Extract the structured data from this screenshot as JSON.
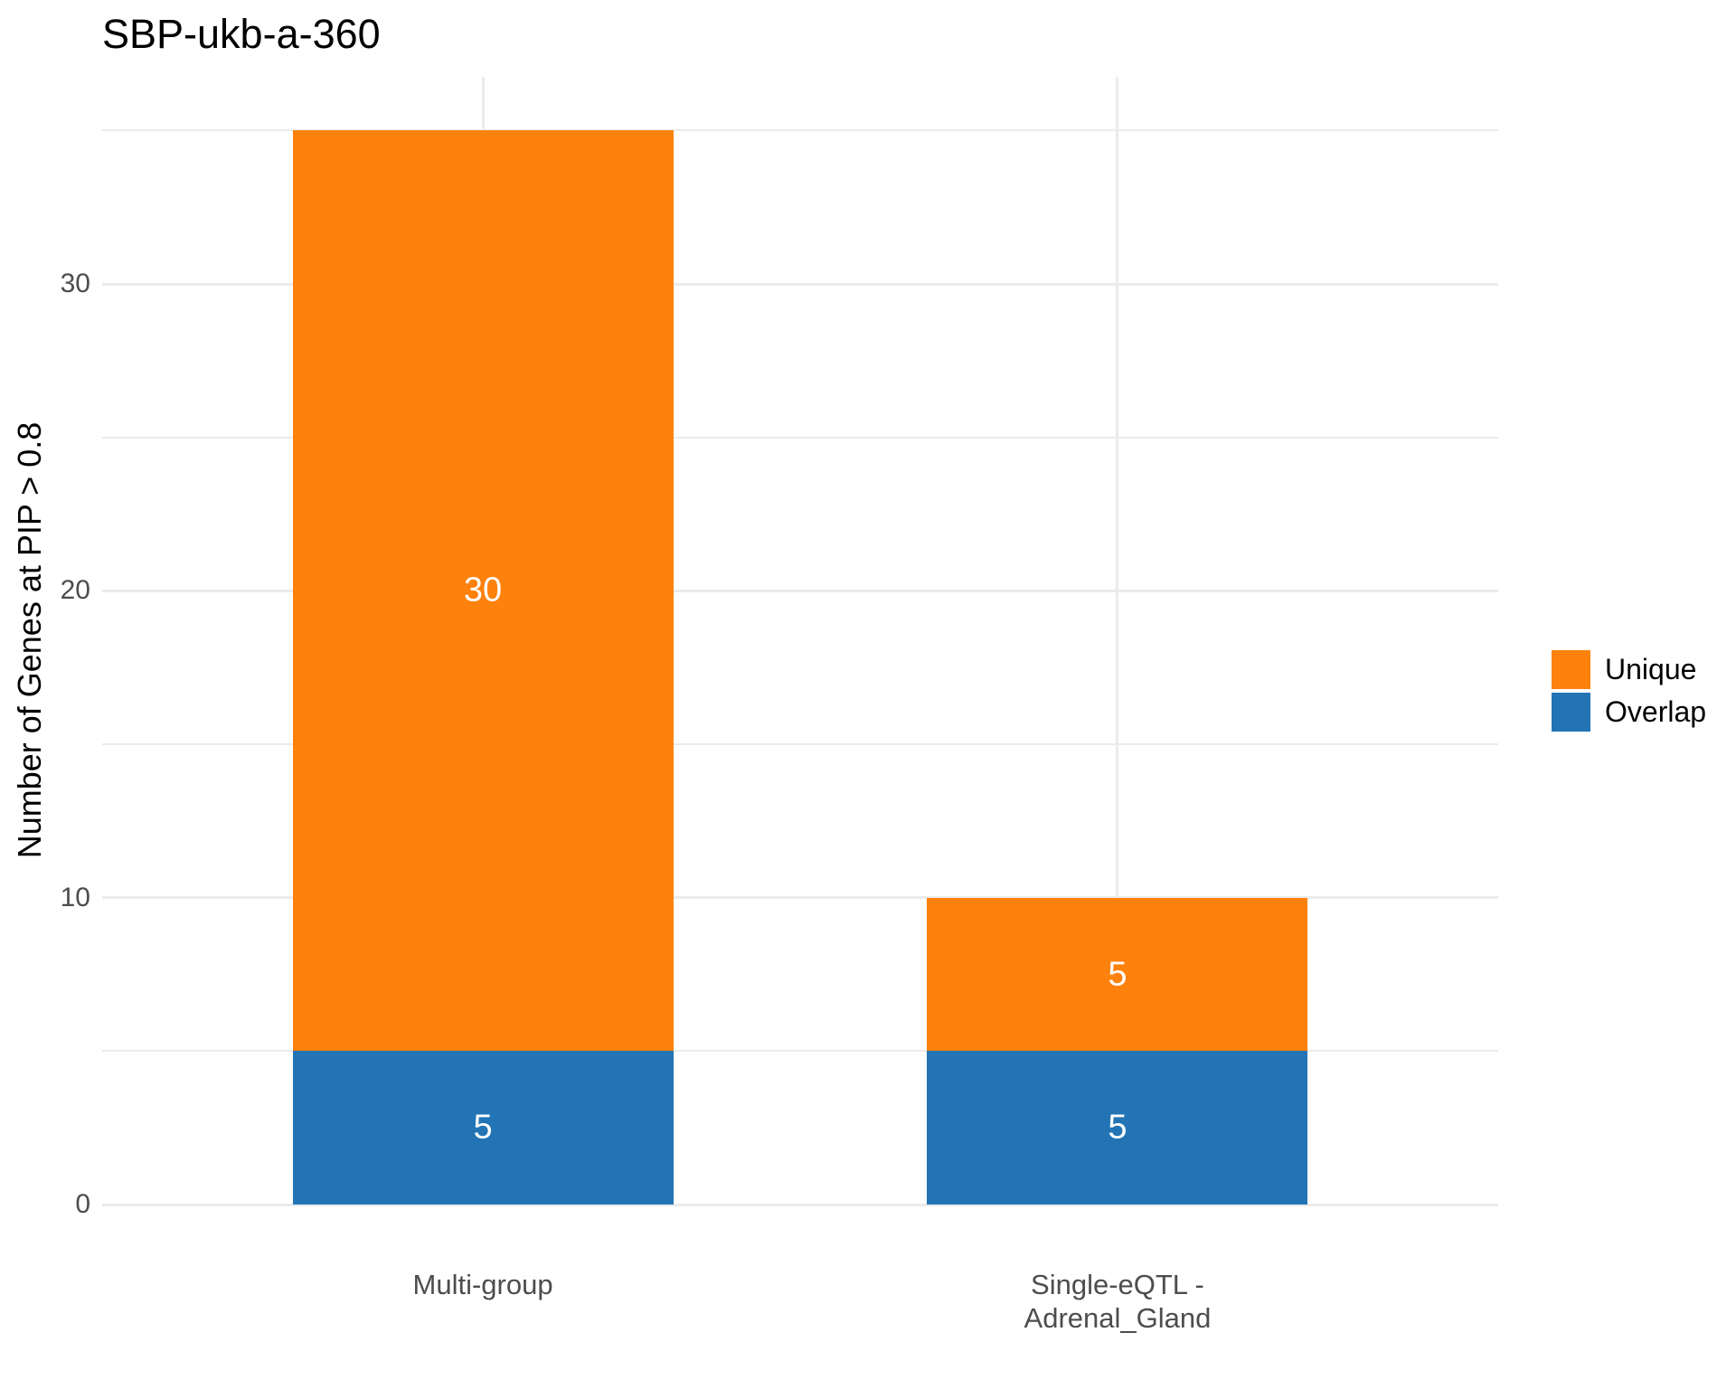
{
  "chart_data": {
    "type": "bar",
    "stacked": true,
    "title": "SBP-ukb-a-360",
    "xlabel": "",
    "ylabel": "Number of Genes at PIP > 0.8",
    "categories": [
      "Multi-group",
      "Single-eQTL -\nAdrenal_Gland"
    ],
    "series": [
      {
        "name": "Overlap",
        "color": "#2374B4",
        "values": [
          5,
          5
        ]
      },
      {
        "name": "Unique",
        "color": "#FD810D",
        "values": [
          30,
          5
        ]
      }
    ],
    "totals": [
      35,
      10
    ],
    "bar_labels": [
      [
        "5",
        "30"
      ],
      [
        "5",
        "5"
      ]
    ],
    "ylim": [
      0,
      36.75
    ],
    "yticks": [
      0,
      10,
      20,
      30
    ],
    "yticks_minor": [
      5,
      15,
      25,
      35
    ],
    "grid": true,
    "grid_color": "#EBEBEB",
    "axis_text_color": "#4d4d4d",
    "legend_position": "right",
    "legend_order": [
      "Unique",
      "Overlap"
    ]
  }
}
